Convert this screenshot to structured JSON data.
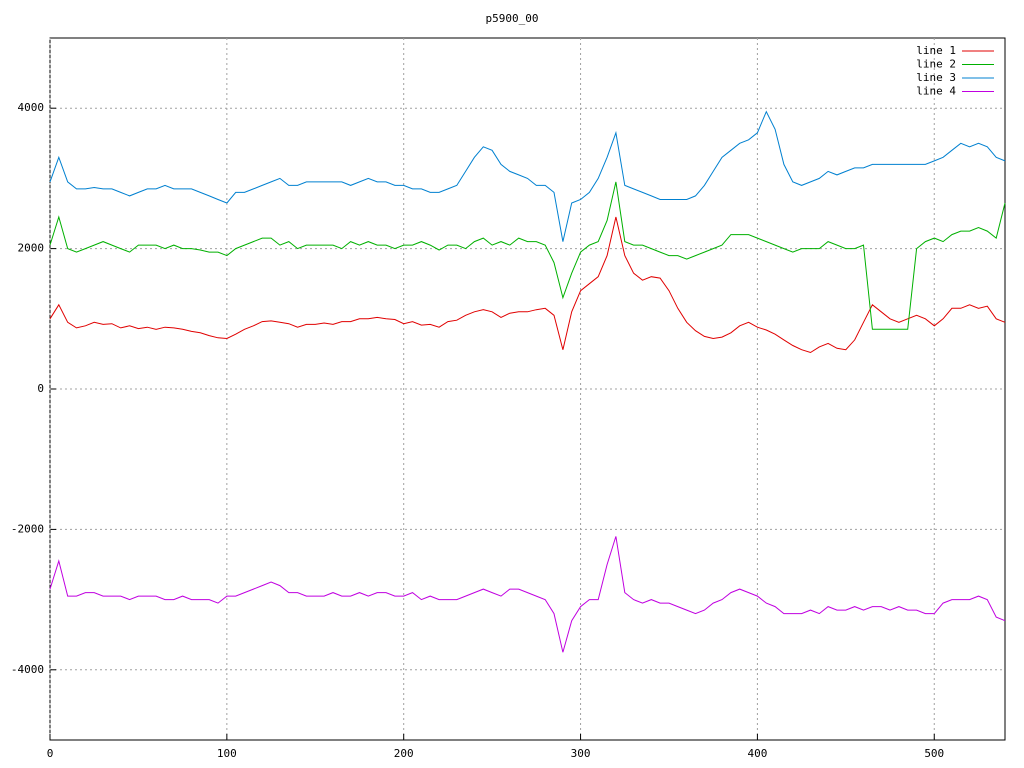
{
  "chart_data": {
    "type": "line",
    "title": "p5900_00",
    "x": [
      0,
      5,
      10,
      15,
      20,
      25,
      30,
      35,
      40,
      45,
      50,
      55,
      60,
      65,
      70,
      75,
      80,
      85,
      90,
      95,
      100,
      105,
      110,
      115,
      120,
      125,
      130,
      135,
      140,
      145,
      150,
      155,
      160,
      165,
      170,
      175,
      180,
      185,
      190,
      195,
      200,
      205,
      210,
      215,
      220,
      225,
      230,
      235,
      240,
      245,
      250,
      255,
      260,
      265,
      270,
      275,
      280,
      285,
      290,
      295,
      300,
      305,
      310,
      315,
      320,
      325,
      330,
      335,
      340,
      345,
      350,
      355,
      360,
      365,
      370,
      375,
      380,
      385,
      390,
      395,
      400,
      405,
      410,
      415,
      420,
      425,
      430,
      435,
      440,
      445,
      450,
      455,
      460,
      465,
      470,
      475,
      480,
      485,
      490,
      495,
      500,
      505,
      510,
      515,
      520,
      525,
      530,
      535,
      540
    ],
    "series": [
      {
        "name": "line 1",
        "color": "#e00000",
        "values": [
          1000,
          1200,
          950,
          870,
          900,
          950,
          920,
          930,
          870,
          900,
          860,
          880,
          850,
          880,
          870,
          850,
          820,
          800,
          760,
          730,
          720,
          780,
          850,
          900,
          960,
          970,
          950,
          930,
          880,
          920,
          920,
          940,
          920,
          960,
          960,
          1000,
          1000,
          1020,
          1000,
          990,
          930,
          960,
          910,
          920,
          880,
          960,
          980,
          1050,
          1100,
          1130,
          1100,
          1020,
          1080,
          1100,
          1100,
          1130,
          1150,
          1050,
          560,
          1100,
          1400,
          1500,
          1600,
          1900,
          2450,
          1900,
          1650,
          1550,
          1600,
          1580,
          1400,
          1150,
          950,
          830,
          750,
          720,
          740,
          800,
          900,
          950,
          880,
          840,
          780,
          700,
          620,
          560,
          520,
          600,
          650,
          580,
          560,
          700,
          950,
          1200,
          1100,
          1000,
          950,
          1000,
          1050,
          1000,
          900,
          1000,
          1150,
          1150,
          1200,
          1150,
          1180,
          1000,
          950
        ]
      },
      {
        "name": "line 2",
        "color": "#00b000",
        "values": [
          2050,
          2450,
          2000,
          1950,
          2000,
          2050,
          2100,
          2050,
          2000,
          1950,
          2050,
          2050,
          2050,
          2000,
          2050,
          2000,
          2000,
          1980,
          1950,
          1950,
          1900,
          2000,
          2050,
          2100,
          2150,
          2150,
          2050,
          2100,
          2000,
          2050,
          2050,
          2050,
          2050,
          2000,
          2100,
          2050,
          2100,
          2050,
          2050,
          2000,
          2050,
          2050,
          2100,
          2050,
          1980,
          2050,
          2050,
          2000,
          2100,
          2150,
          2050,
          2100,
          2050,
          2150,
          2100,
          2100,
          2050,
          1800,
          1300,
          1650,
          1950,
          2050,
          2100,
          2400,
          2950,
          2100,
          2050,
          2050,
          2000,
          1950,
          1900,
          1900,
          1850,
          1900,
          1950,
          2000,
          2050,
          2200,
          2200,
          2200,
          2150,
          2100,
          2050,
          2000,
          1950,
          2000,
          2000,
          2000,
          2100,
          2050,
          2000,
          2000,
          2050,
          850,
          850,
          850,
          850,
          850,
          2000,
          2100,
          2150,
          2100,
          2200,
          2250,
          2250,
          2300,
          2250,
          2150,
          2650
        ]
      },
      {
        "name": "line 3",
        "color": "#0080d0",
        "values": [
          2950,
          3300,
          2950,
          2850,
          2850,
          2870,
          2850,
          2850,
          2800,
          2750,
          2800,
          2850,
          2850,
          2900,
          2850,
          2850,
          2850,
          2800,
          2750,
          2700,
          2650,
          2800,
          2800,
          2850,
          2900,
          2950,
          3000,
          2900,
          2900,
          2950,
          2950,
          2950,
          2950,
          2950,
          2900,
          2950,
          3000,
          2950,
          2950,
          2900,
          2900,
          2850,
          2850,
          2800,
          2800,
          2850,
          2900,
          3100,
          3300,
          3450,
          3400,
          3200,
          3100,
          3050,
          3000,
          2900,
          2900,
          2800,
          2100,
          2650,
          2700,
          2800,
          3000,
          3300,
          3650,
          2900,
          2850,
          2800,
          2750,
          2700,
          2700,
          2700,
          2700,
          2750,
          2900,
          3100,
          3300,
          3400,
          3500,
          3550,
          3650,
          3950,
          3700,
          3200,
          2950,
          2900,
          2950,
          3000,
          3100,
          3050,
          3100,
          3150,
          3150,
          3200,
          3200,
          3200,
          3200,
          3200,
          3200,
          3200,
          3250,
          3300,
          3400,
          3500,
          3450,
          3500,
          3450,
          3300,
          3250
        ]
      },
      {
        "name": "line 4",
        "color": "#c000e0",
        "values": [
          -2850,
          -2450,
          -2950,
          -2950,
          -2900,
          -2900,
          -2950,
          -2950,
          -2950,
          -3000,
          -2950,
          -2950,
          -2950,
          -3000,
          -3000,
          -2950,
          -3000,
          -3000,
          -3000,
          -3050,
          -2950,
          -2950,
          -2900,
          -2850,
          -2800,
          -2750,
          -2800,
          -2900,
          -2900,
          -2950,
          -2950,
          -2950,
          -2900,
          -2950,
          -2950,
          -2900,
          -2950,
          -2900,
          -2900,
          -2950,
          -2950,
          -2900,
          -3000,
          -2950,
          -3000,
          -3000,
          -3000,
          -2950,
          -2900,
          -2850,
          -2900,
          -2950,
          -2850,
          -2850,
          -2900,
          -2950,
          -3000,
          -3200,
          -3750,
          -3300,
          -3100,
          -3000,
          -3000,
          -2500,
          -2100,
          -2900,
          -3000,
          -3050,
          -3000,
          -3050,
          -3050,
          -3100,
          -3150,
          -3200,
          -3150,
          -3050,
          -3000,
          -2900,
          -2850,
          -2900,
          -2950,
          -3050,
          -3100,
          -3200,
          -3200,
          -3200,
          -3150,
          -3200,
          -3100,
          -3150,
          -3150,
          -3100,
          -3150,
          -3100,
          -3100,
          -3150,
          -3100,
          -3150,
          -3150,
          -3200,
          -3200,
          -3050,
          -3000,
          -3000,
          -3000,
          -2950,
          -3000,
          -3250,
          -3300
        ]
      }
    ],
    "xlim": [
      0,
      540
    ],
    "xticks": [
      0,
      100,
      200,
      300,
      400,
      500
    ],
    "ylim": [
      -5000,
      5000
    ],
    "yticks": [
      -4000,
      -2000,
      0,
      2000,
      4000
    ],
    "grid": true,
    "legend": "top-right"
  }
}
